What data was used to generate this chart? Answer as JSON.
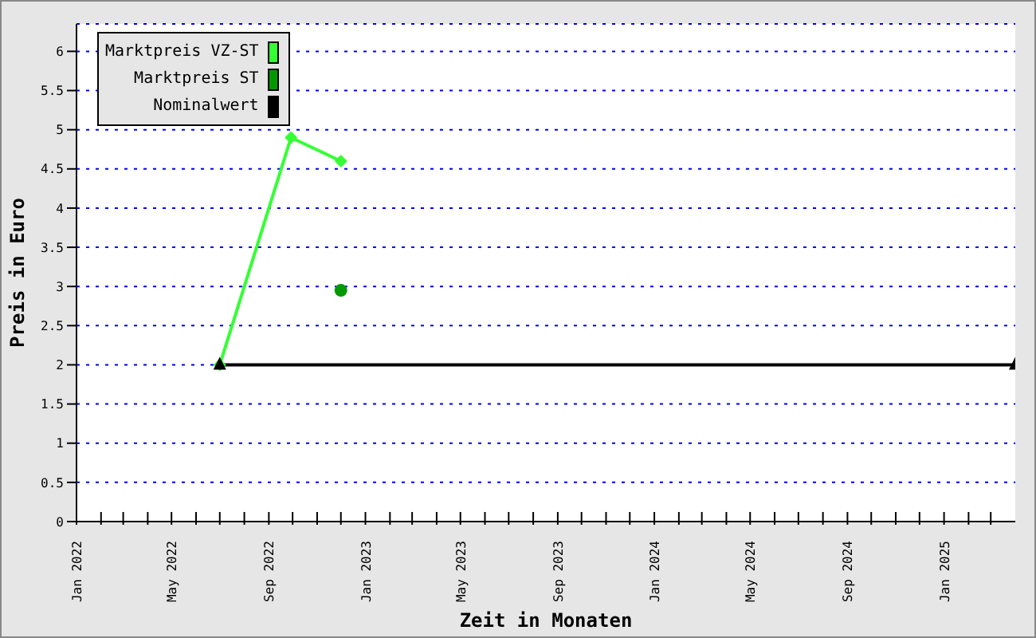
{
  "chart_data": {
    "type": "line",
    "xlabel": "Zeit in Monaten",
    "ylabel": "Preis in Euro",
    "xlim": [
      "2022-01-01",
      "2025-04-01"
    ],
    "xticks": [
      {
        "value": "2022-01",
        "label": "Jan 2022"
      },
      {
        "value": "2022-02",
        "label": null
      },
      {
        "value": "2022-03",
        "label": null
      },
      {
        "value": "2022-04",
        "label": null
      },
      {
        "value": "2022-05",
        "label": "May 2022"
      },
      {
        "value": "2022-06",
        "label": null
      },
      {
        "value": "2022-07",
        "label": null
      },
      {
        "value": "2022-08",
        "label": null
      },
      {
        "value": "2022-09",
        "label": "Sep 2022"
      },
      {
        "value": "2022-10",
        "label": null
      },
      {
        "value": "2022-11",
        "label": null
      },
      {
        "value": "2022-12",
        "label": null
      },
      {
        "value": "2023-01",
        "label": "Jan 2023"
      },
      {
        "value": "2023-02",
        "label": null
      },
      {
        "value": "2023-03",
        "label": null
      },
      {
        "value": "2023-04",
        "label": null
      },
      {
        "value": "2023-05",
        "label": "May 2023"
      },
      {
        "value": "2023-06",
        "label": null
      },
      {
        "value": "2023-07",
        "label": null
      },
      {
        "value": "2023-08",
        "label": null
      },
      {
        "value": "2023-09",
        "label": "Sep 2023"
      },
      {
        "value": "2023-10",
        "label": null
      },
      {
        "value": "2023-11",
        "label": null
      },
      {
        "value": "2023-12",
        "label": null
      },
      {
        "value": "2024-01",
        "label": "Jan 2024"
      },
      {
        "value": "2024-02",
        "label": null
      },
      {
        "value": "2024-03",
        "label": null
      },
      {
        "value": "2024-04",
        "label": null
      },
      {
        "value": "2024-05",
        "label": "May 2024"
      },
      {
        "value": "2024-06",
        "label": null
      },
      {
        "value": "2024-07",
        "label": null
      },
      {
        "value": "2024-08",
        "label": null
      },
      {
        "value": "2024-09",
        "label": "Sep 2024"
      },
      {
        "value": "2024-10",
        "label": null
      },
      {
        "value": "2024-11",
        "label": null
      },
      {
        "value": "2024-12",
        "label": null
      },
      {
        "value": "2025-01",
        "label": "Jan 2025"
      },
      {
        "value": "2025-02",
        "label": null
      },
      {
        "value": "2025-03",
        "label": null
      }
    ],
    "ylim": [
      0,
      6.35
    ],
    "yticks": [
      0,
      0.5,
      1,
      1.5,
      2,
      2.5,
      3,
      3.5,
      4,
      4.5,
      5,
      5.5,
      6
    ],
    "grid": "y",
    "legend": "top left",
    "series": [
      {
        "name": "Marktpreis VZ-ST",
        "color": "#33ff33",
        "marker": "diamond",
        "x": [
          "2022-07-01",
          "2022-09-29",
          "2022-12-01"
        ],
        "values": [
          2,
          4.9,
          4.6
        ]
      },
      {
        "name": "Marktpreis ST",
        "color": "#009900",
        "marker": "circle",
        "x": [
          "2022-12-01"
        ],
        "values": [
          2.95
        ]
      },
      {
        "name": "Nominalwert",
        "color": "#000000",
        "marker": "triangle",
        "x": [
          "2022-07-01",
          "2025-04-01"
        ],
        "values": [
          2,
          2
        ]
      }
    ]
  }
}
